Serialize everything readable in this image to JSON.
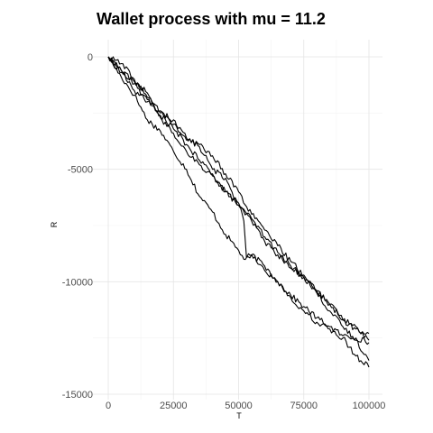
{
  "chart_data": {
    "type": "line",
    "title": "Wallet process with mu =  11.2",
    "xlabel": "T",
    "ylabel": "R",
    "xlim": [
      0,
      100000
    ],
    "ylim": [
      -15000,
      0
    ],
    "x_ticks": [
      0,
      25000,
      50000,
      75000,
      100000
    ],
    "x_tick_labels": [
      "0",
      "25000",
      "50000",
      "75000",
      "100000"
    ],
    "y_ticks": [
      0,
      -5000,
      -10000,
      -15000
    ],
    "y_tick_labels": [
      "0",
      "-5000",
      "-10000",
      "-15000"
    ],
    "grid": true,
    "line_color": "#000000",
    "series": [
      {
        "x": [
          0,
          5000,
          10000,
          15000,
          20000,
          25000,
          30000,
          35000,
          40000,
          45000,
          50000,
          52000,
          55000,
          60000,
          65000,
          70000,
          75000,
          80000,
          85000,
          90000,
          95000,
          100000
        ],
        "values": [
          0,
          -900,
          -1700,
          -2800,
          -3300,
          -4200,
          -5000,
          -6200,
          -6900,
          -7900,
          -8600,
          -9000,
          -8800,
          -9300,
          -10000,
          -10600,
          -11100,
          -11600,
          -12000,
          -12400,
          -12500,
          -12700
        ]
      },
      {
        "x": [
          0,
          5000,
          10000,
          15000,
          20000,
          25000,
          30000,
          35000,
          40000,
          45000,
          50000,
          55000,
          60000,
          65000,
          70000,
          75000,
          80000,
          85000,
          90000,
          95000,
          100000
        ],
        "values": [
          0,
          -700,
          -1200,
          -2000,
          -2600,
          -3200,
          -3900,
          -4600,
          -5200,
          -6000,
          -6600,
          -7300,
          -8200,
          -8800,
          -9400,
          -9800,
          -10500,
          -11300,
          -12000,
          -12600,
          -13500
        ]
      },
      {
        "x": [
          0,
          5000,
          10000,
          15000,
          20000,
          25000,
          30000,
          35000,
          40000,
          45000,
          50000,
          55000,
          60000,
          65000,
          70000,
          75000,
          80000,
          85000,
          90000,
          95000,
          100000
        ],
        "values": [
          0,
          -600,
          -1500,
          -1900,
          -2500,
          -2800,
          -3600,
          -4000,
          -5000,
          -5400,
          -6600,
          -7200,
          -8000,
          -8700,
          -9300,
          -9800,
          -10400,
          -11000,
          -11700,
          -12100,
          -12300
        ]
      },
      {
        "x": [
          0,
          5000,
          10000,
          15000,
          20000,
          25000,
          30000,
          35000,
          40000,
          45000,
          50000,
          55000,
          60000,
          65000,
          70000,
          75000,
          80000,
          85000,
          90000,
          95000,
          100000
        ],
        "values": [
          0,
          -300,
          -1000,
          -1800,
          -2400,
          -3000,
          -3700,
          -3900,
          -4400,
          -5200,
          -6000,
          -7000,
          -7700,
          -8400,
          -9100,
          -9700,
          -10400,
          -11000,
          -11700,
          -12000,
          -12600
        ]
      },
      {
        "x": [
          0,
          5000,
          10000,
          15000,
          20000,
          25000,
          30000,
          35000,
          40000,
          45000,
          50000,
          52000,
          53000,
          55000,
          60000,
          65000,
          70000,
          75000,
          80000,
          85000,
          90000,
          95000,
          100000
        ],
        "values": [
          0,
          -600,
          -1100,
          -1600,
          -2700,
          -3400,
          -4200,
          -4800,
          -5300,
          -6000,
          -6500,
          -7300,
          -8900,
          -8800,
          -9500,
          -10000,
          -10700,
          -11300,
          -11800,
          -12100,
          -12500,
          -13300,
          -13800
        ]
      }
    ]
  }
}
